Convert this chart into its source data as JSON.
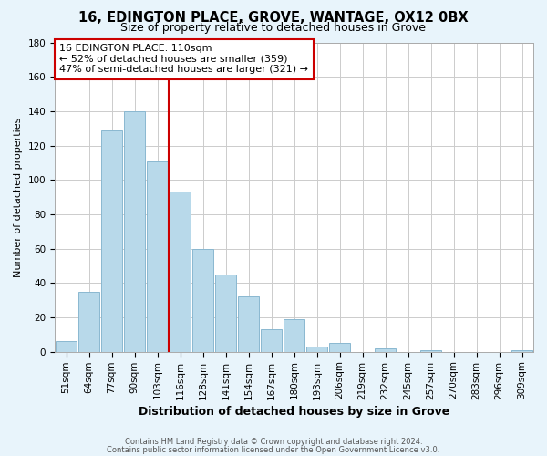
{
  "title": "16, EDINGTON PLACE, GROVE, WANTAGE, OX12 0BX",
  "subtitle": "Size of property relative to detached houses in Grove",
  "xlabel": "Distribution of detached houses by size in Grove",
  "ylabel": "Number of detached properties",
  "bar_labels": [
    "51sqm",
    "64sqm",
    "77sqm",
    "90sqm",
    "103sqm",
    "116sqm",
    "128sqm",
    "141sqm",
    "154sqm",
    "167sqm",
    "180sqm",
    "193sqm",
    "206sqm",
    "219sqm",
    "232sqm",
    "245sqm",
    "257sqm",
    "270sqm",
    "283sqm",
    "296sqm",
    "309sqm"
  ],
  "bar_values": [
    6,
    35,
    129,
    140,
    111,
    93,
    60,
    45,
    32,
    13,
    19,
    3,
    5,
    0,
    2,
    0,
    1,
    0,
    0,
    0,
    1
  ],
  "bar_color": "#b8d9ea",
  "bar_edge_color": "#8ab8d0",
  "vline_color": "#cc0000",
  "ylim_max": 180,
  "yticks": [
    0,
    20,
    40,
    60,
    80,
    100,
    120,
    140,
    160,
    180
  ],
  "annotation_title": "16 EDINGTON PLACE: 110sqm",
  "annotation_line1": "← 52% of detached houses are smaller (359)",
  "annotation_line2": "47% of semi-detached houses are larger (321) →",
  "footer1": "Contains HM Land Registry data © Crown copyright and database right 2024.",
  "footer2": "Contains public sector information licensed under the Open Government Licence v3.0.",
  "bg_color": "#e8f4fb",
  "plot_bg_color": "#ffffff",
  "grid_color": "#cccccc",
  "ann_box_color": "#cc0000",
  "title_fontsize": 10.5,
  "subtitle_fontsize": 9,
  "xlabel_fontsize": 9,
  "ylabel_fontsize": 8,
  "tick_fontsize": 7.5,
  "ann_fontsize": 8,
  "footer_fontsize": 6
}
